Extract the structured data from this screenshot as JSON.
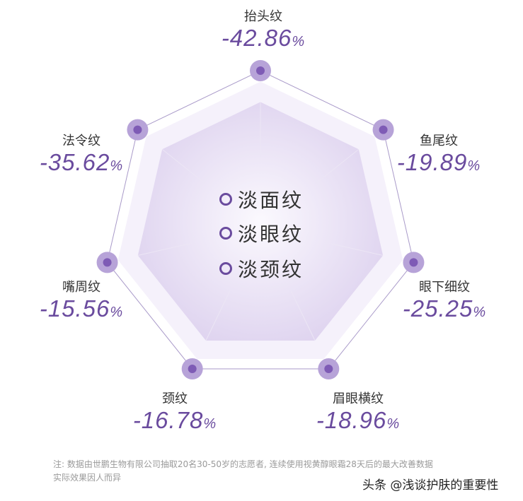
{
  "chart_data": {
    "type": "radar",
    "categories": [
      "抬头纹",
      "鱼尾纹",
      "眼下细纹",
      "眉眼横纹",
      "颈纹",
      "嘴周纹",
      "法令纹"
    ],
    "values": [
      -42.86,
      -19.89,
      -25.25,
      -18.96,
      -16.78,
      -15.56,
      -35.62
    ],
    "value_labels": [
      "-42.86",
      "-19.89",
      "-25.25",
      "-18.96",
      "-16.78",
      "-15.56",
      "-35.62"
    ],
    "unit": "%",
    "legend": [
      "淡面纹",
      "淡眼纹",
      "淡颈纹"
    ],
    "legend_placement": "center",
    "colors": {
      "accent": "#6a4b9e",
      "marker": "#7e5bb5",
      "marker_halo": "#b7a3d8",
      "fill": "#e6ddf3"
    }
  },
  "footnote": {
    "line1": "注: 数据由世鹏生物有限公司抽取20名30-50岁的志愿者, 连续使用视黄醇眼霜28天后的最大改善数据",
    "line2": "实际效果因人而异"
  },
  "watermark": "头条 @浅谈护肤的重要性"
}
